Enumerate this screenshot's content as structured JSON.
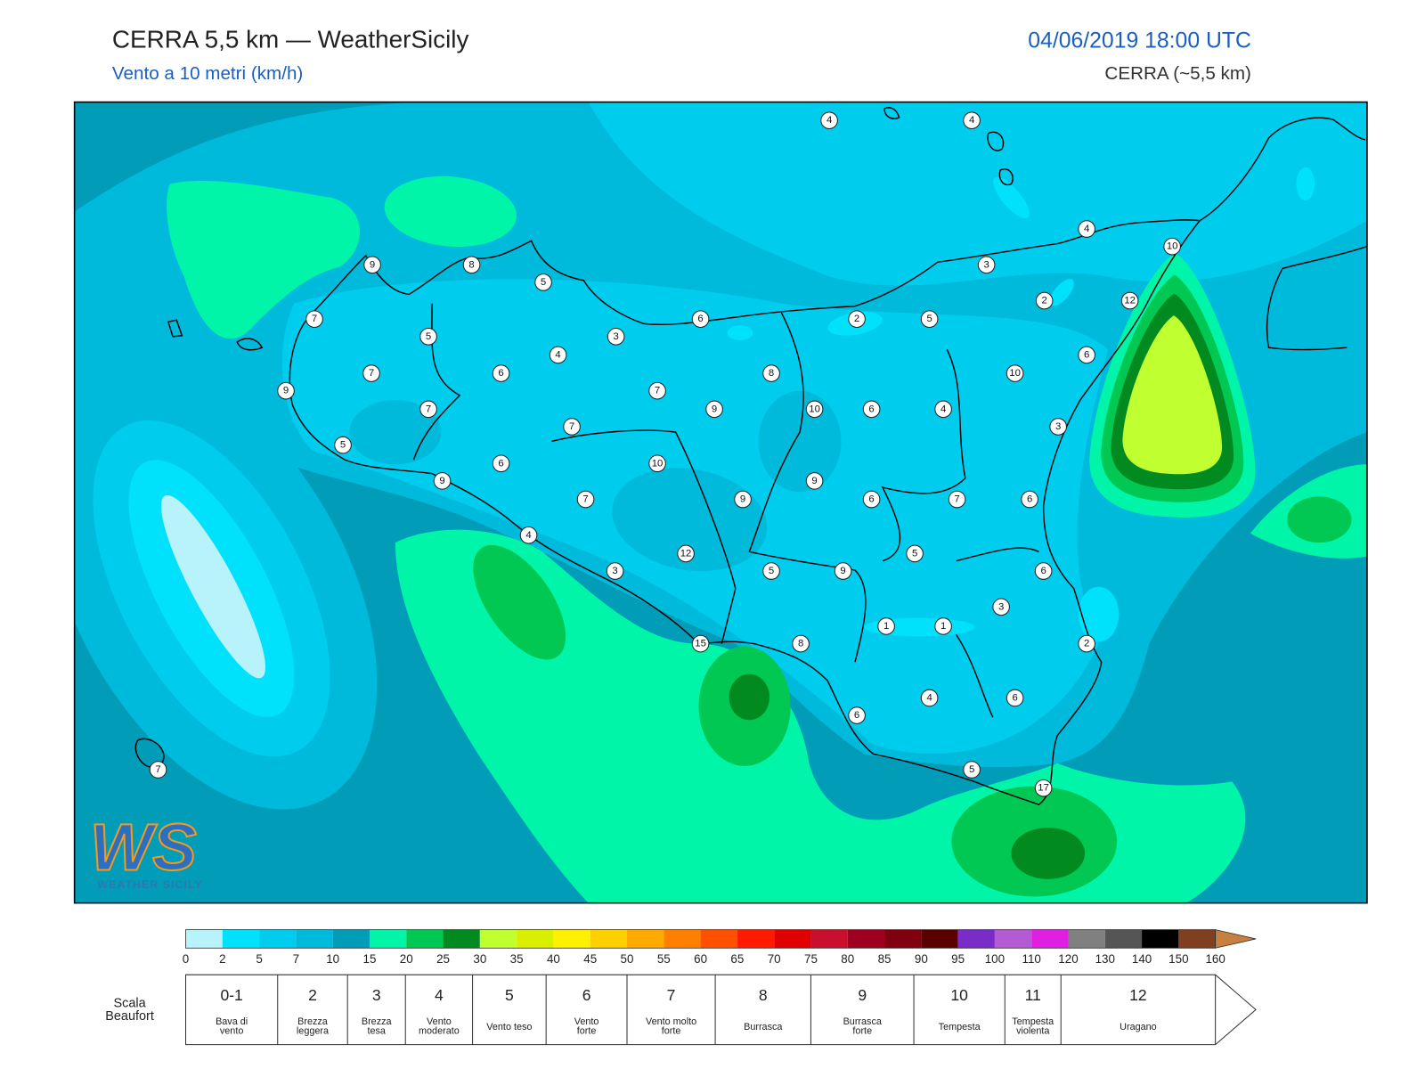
{
  "header": {
    "title": "CERRA 5,5 km — WeatherSicily",
    "subtitle": "Vento a 10 metri (km/h)",
    "valid_time": "04/06/2019 18:00 UTC",
    "model": "CERRA (~5,5 km)"
  },
  "map": {
    "stations": [
      4,
      4,
      4,
      10,
      9,
      8,
      5,
      3,
      2,
      12,
      7,
      5,
      3,
      6,
      2,
      5,
      4,
      6,
      7,
      6,
      8,
      10,
      9,
      7,
      7,
      9,
      10,
      6,
      4,
      7,
      3,
      5,
      10,
      6,
      9,
      9,
      7,
      9,
      6,
      7,
      6,
      4,
      5,
      12,
      3,
      5,
      9,
      6,
      3,
      1,
      1,
      2,
      15,
      8,
      4,
      6,
      6,
      7,
      5,
      17
    ]
  },
  "logo": {
    "mark": "WS",
    "text": "WEATHER SICILY"
  },
  "colorbar": {
    "ticks": [
      0,
      2,
      5,
      7,
      10,
      15,
      20,
      25,
      30,
      35,
      40,
      45,
      50,
      55,
      60,
      65,
      70,
      75,
      80,
      85,
      90,
      95,
      100,
      110,
      120,
      130,
      140,
      150,
      160
    ],
    "colors": [
      "#b8f2fa",
      "#00e2fc",
      "#00cdee",
      "#00badc",
      "#009cb8",
      "#00f5a8",
      "#00c853",
      "#008a20",
      "#c0ff30",
      "#d8f000",
      "#fff000",
      "#ffd000",
      "#ffaa00",
      "#ff8000",
      "#ff5000",
      "#ff1a00",
      "#e00000",
      "#c8102e",
      "#a00020",
      "#800010",
      "#5a0000",
      "#7a2cc8",
      "#b45ad2",
      "#e020e0",
      "#808080",
      "#555555",
      "#000000",
      "#804020",
      "#c88040"
    ]
  },
  "beaufort": {
    "label": [
      "Scala",
      "Beaufort"
    ],
    "levels": [
      {
        "force": "0-1",
        "description": [
          "Bava di",
          "vento"
        ]
      },
      {
        "force": 2,
        "description": [
          "Brezza",
          "leggera"
        ]
      },
      {
        "force": 3,
        "description": [
          "Brezza",
          "tesa"
        ]
      },
      {
        "force": 4,
        "description": [
          "Vento",
          "moderato"
        ]
      },
      {
        "force": 5,
        "description": [
          "Vento teso"
        ]
      },
      {
        "force": 6,
        "description": [
          "Vento",
          "forte"
        ]
      },
      {
        "force": 7,
        "description": [
          "Vento molto",
          "forte"
        ]
      },
      {
        "force": 8,
        "description": [
          "Burrasca"
        ]
      },
      {
        "force": 9,
        "description": [
          "Burrasca",
          "forte"
        ]
      },
      {
        "force": 10,
        "description": [
          "Tempesta"
        ]
      },
      {
        "force": 11,
        "description": [
          "Tempesta",
          "violenta"
        ]
      },
      {
        "force": 12,
        "description": [
          "Uragano"
        ]
      }
    ]
  }
}
